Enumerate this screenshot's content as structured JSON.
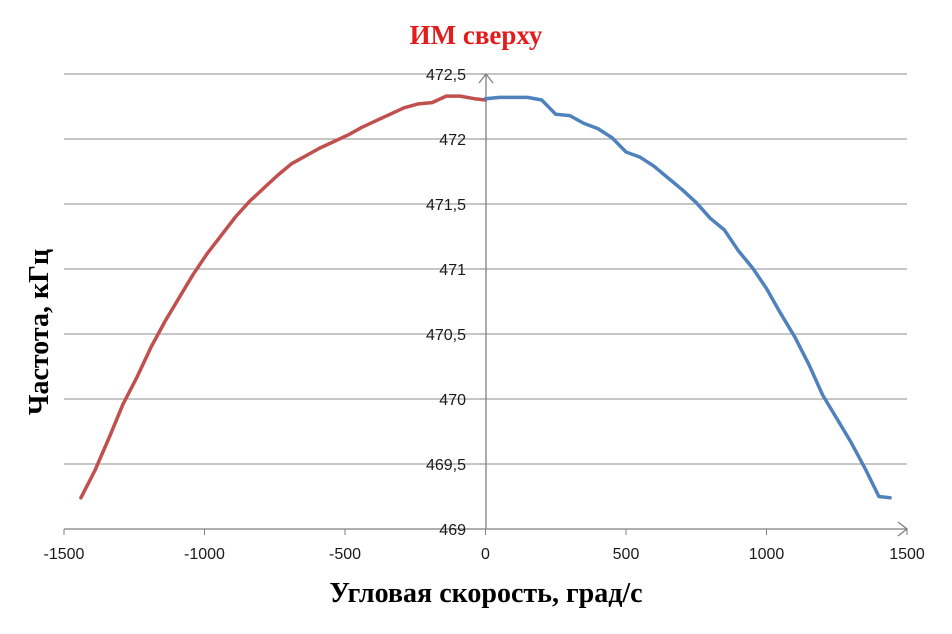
{
  "chart_data": {
    "type": "line",
    "title": "ИМ сверху",
    "xlabel": "Угловая скорость, град/с",
    "ylabel": "Частота, кГц",
    "xlim": [
      -1500,
      1500
    ],
    "ylim": [
      469,
      472.5
    ],
    "xticks": [
      -1500,
      -1000,
      -500,
      0,
      500,
      1000,
      1500
    ],
    "xtick_labels": [
      "-1500",
      "-1000",
      "-500",
      "0",
      "500",
      "1000",
      "1500"
    ],
    "yticks": [
      469,
      469.5,
      470,
      470.5,
      471,
      471.5,
      472,
      472.5
    ],
    "ytick_labels": [
      "469",
      "469,5",
      "470",
      "470,5",
      "471",
      "471,5",
      "472",
      "472,5"
    ],
    "grid": "horizontal",
    "colors": {
      "title": "#e31b1b",
      "axis_title": "#000000",
      "grid": "#8c8c8c",
      "axis": "#7f7f7f"
    },
    "series": [
      {
        "color": "#c0504d",
        "x": [
          -1440,
          -1390,
          -1340,
          -1290,
          -1240,
          -1190,
          -1140,
          -1090,
          -1040,
          -990,
          -940,
          -890,
          -840,
          -790,
          -740,
          -690,
          -640,
          -590,
          -540,
          -490,
          -440,
          -390,
          -340,
          -290,
          -240,
          -190,
          -140,
          -90,
          -40,
          0
        ],
        "y": [
          469.24,
          469.45,
          469.7,
          469.96,
          470.17,
          470.4,
          470.6,
          470.78,
          470.96,
          471.12,
          471.26,
          471.4,
          471.52,
          471.62,
          471.72,
          471.81,
          471.87,
          471.93,
          471.98,
          472.03,
          472.09,
          472.14,
          472.19,
          472.24,
          472.27,
          472.28,
          472.33,
          472.33,
          472.31,
          472.3
        ]
      },
      {
        "color": "#4f81bd",
        "x": [
          0,
          50,
          100,
          150,
          200,
          250,
          300,
          350,
          400,
          450,
          500,
          550,
          600,
          650,
          700,
          750,
          800,
          850,
          900,
          950,
          1000,
          1050,
          1100,
          1150,
          1200,
          1250,
          1300,
          1350,
          1400,
          1440
        ],
        "y": [
          472.31,
          472.32,
          472.32,
          472.32,
          472.3,
          472.19,
          472.18,
          472.12,
          472.08,
          472.01,
          471.9,
          471.86,
          471.79,
          471.7,
          471.61,
          471.51,
          471.39,
          471.3,
          471.14,
          471.01,
          470.85,
          470.66,
          470.48,
          470.27,
          470.03,
          469.85,
          469.67,
          469.47,
          469.25,
          469.24
        ]
      }
    ]
  }
}
